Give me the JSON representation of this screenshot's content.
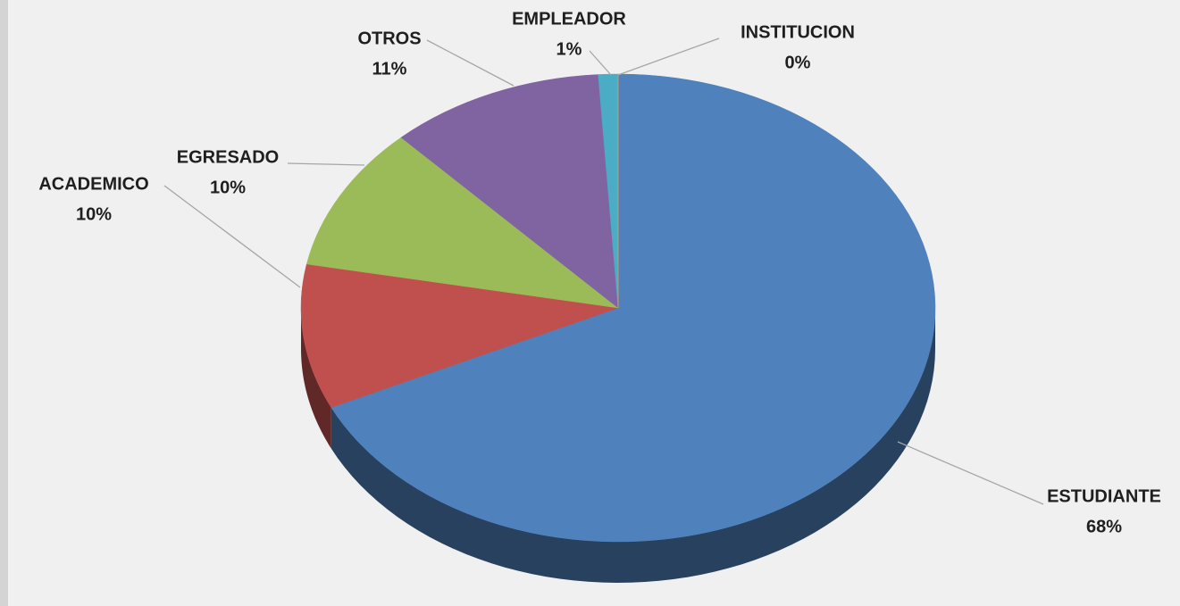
{
  "chart_data": {
    "type": "pie",
    "categories": [
      "ESTUDIANTE",
      "ACADEMICO",
      "EGRESADO",
      "OTROS",
      "EMPLEADOR",
      "INSTITUCION"
    ],
    "values": [
      68,
      10,
      10,
      11,
      1,
      0
    ],
    "value_labels": [
      "68%",
      "10%",
      "10%",
      "11%",
      "1%",
      "0%"
    ],
    "colors": [
      "#4f81bd",
      "#c0504d",
      "#9bbb59",
      "#8064a2",
      "#4bacc6",
      "#f79646"
    ]
  }
}
